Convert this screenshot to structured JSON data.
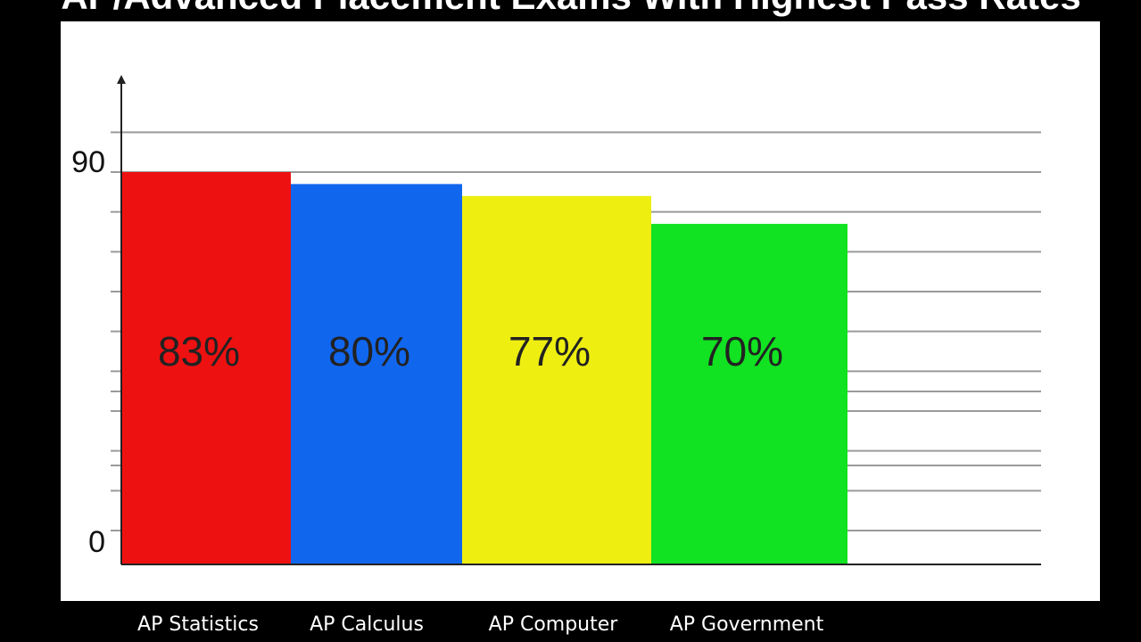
{
  "chart_data": {
    "type": "bar",
    "title": "AP/Advanced Placement Exams With Highest Pass Rates",
    "categories": [
      "AP Statistics",
      "AP Calculus",
      "AP Computer",
      "AP Government"
    ],
    "values": [
      83,
      80,
      77,
      70
    ],
    "value_labels": [
      "83%",
      "80%",
      "77%",
      "70%"
    ],
    "colors": [
      "#ee1111",
      "#1166ee",
      "#eeee11",
      "#11e222"
    ],
    "ylabel": "",
    "xlabel": "",
    "ytick_labels": [
      {
        "value": 0,
        "label": "0"
      },
      {
        "value": 90,
        "label": "90"
      }
    ],
    "ylim": [
      0,
      110
    ],
    "grid": true,
    "legend": "none"
  }
}
